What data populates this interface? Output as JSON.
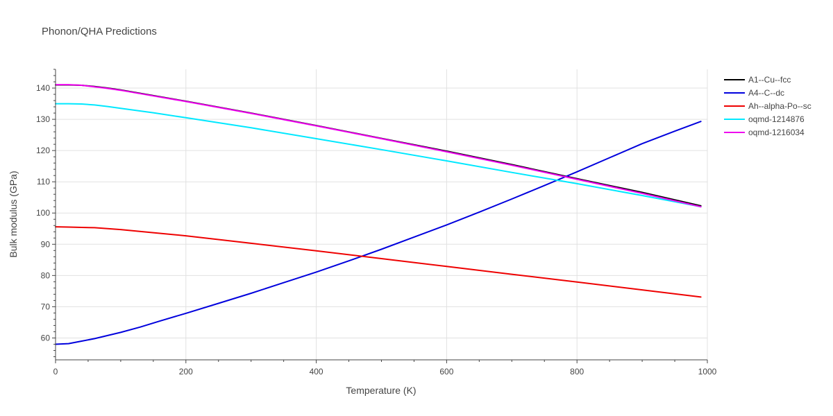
{
  "chart_data": {
    "type": "line",
    "title": "Phonon/QHA Predictions",
    "xlabel": "Temperature (K)",
    "ylabel": "Bulk modulus (GPa)",
    "xlim": [
      0,
      1000
    ],
    "ylim": [
      53,
      146
    ],
    "xticks": [
      0,
      200,
      400,
      600,
      800,
      1000
    ],
    "xtick_labels": [
      "0",
      "200",
      "400",
      "600",
      "800",
      "1000"
    ],
    "yticks": [
      60,
      70,
      80,
      90,
      100,
      110,
      120,
      130,
      140
    ],
    "ytick_labels": [
      "60",
      "70",
      "80",
      "90",
      "100",
      "110",
      "120",
      "130",
      "140"
    ],
    "grid": true,
    "legend_position": "top-right",
    "series": [
      {
        "name": "A1--Cu--fcc",
        "color": "#000000",
        "x": [
          0,
          20,
          40,
          60,
          80,
          100,
          150,
          200,
          300,
          400,
          500,
          600,
          700,
          800,
          900,
          990
        ],
        "y": [
          141.0,
          141.0,
          140.9,
          140.5,
          140.0,
          139.4,
          137.6,
          135.8,
          132.0,
          128.0,
          123.9,
          119.8,
          115.5,
          111.0,
          106.6,
          102.3
        ]
      },
      {
        "name": "A4--C--dc",
        "color": "#0000dd",
        "x": [
          0,
          20,
          40,
          60,
          80,
          100,
          130,
          160,
          200,
          250,
          300,
          350,
          400,
          450,
          500,
          550,
          600,
          650,
          700,
          750,
          800,
          850,
          900,
          950,
          990
        ],
        "y": [
          58.0,
          58.2,
          59.0,
          59.8,
          60.8,
          61.8,
          63.5,
          65.4,
          67.9,
          71.1,
          74.3,
          77.7,
          81.1,
          84.7,
          88.4,
          92.3,
          96.2,
          100.3,
          104.5,
          108.8,
          113.2,
          117.7,
          122.2,
          126.2,
          129.3
        ]
      },
      {
        "name": "Ah--alpha-Po--sc",
        "color": "#ee0000",
        "x": [
          0,
          20,
          40,
          60,
          80,
          100,
          150,
          200,
          300,
          400,
          500,
          600,
          700,
          800,
          900,
          990
        ],
        "y": [
          95.6,
          95.5,
          95.4,
          95.3,
          95.0,
          94.7,
          93.7,
          92.7,
          90.3,
          87.9,
          85.4,
          82.9,
          80.4,
          77.9,
          75.4,
          73.1
        ]
      },
      {
        "name": "oqmd-1214876",
        "color": "#00e8ff",
        "x": [
          0,
          20,
          40,
          60,
          80,
          100,
          150,
          200,
          300,
          400,
          500,
          600,
          700,
          800,
          900,
          990
        ],
        "y": [
          135.0,
          135.0,
          134.9,
          134.6,
          134.1,
          133.5,
          132.1,
          130.5,
          127.3,
          123.8,
          120.3,
          116.7,
          113.0,
          109.4,
          105.6,
          102.0
        ]
      },
      {
        "name": "oqmd-1216034",
        "color": "#ee00ee",
        "x": [
          0,
          20,
          40,
          60,
          80,
          100,
          150,
          200,
          300,
          400,
          500,
          600,
          700,
          800,
          900,
          990
        ],
        "y": [
          141.1,
          141.1,
          140.9,
          140.4,
          139.9,
          139.3,
          137.5,
          135.7,
          131.9,
          127.9,
          123.8,
          119.6,
          115.3,
          110.8,
          106.3,
          102.0
        ]
      }
    ]
  }
}
